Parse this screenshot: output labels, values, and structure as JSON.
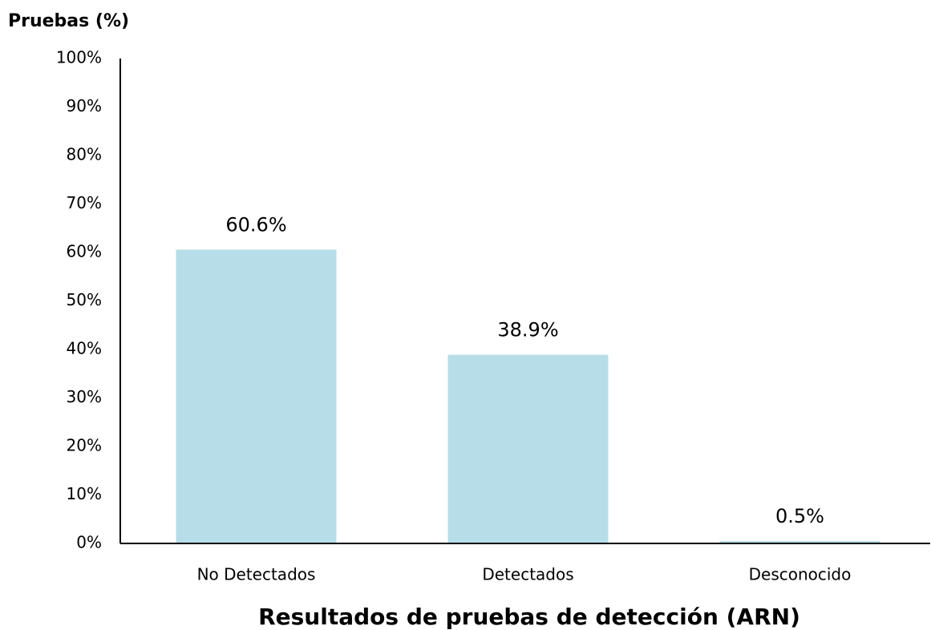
{
  "chart_data": {
    "type": "bar",
    "y_label": "Pruebas (%)",
    "x_label": "Resultados de pruebas de detección (ARN)",
    "categories": [
      "No Detectados",
      "Detectados",
      "Desconocido"
    ],
    "values": [
      60.6,
      38.9,
      0.5
    ],
    "value_labels": [
      "60.6%",
      "38.9%",
      "0.5%"
    ],
    "color": "#b7dee8",
    "ylim": [
      0,
      100
    ],
    "yticks": [
      {
        "value": 0,
        "label": "0%"
      },
      {
        "value": 10,
        "label": "10%"
      },
      {
        "value": 20,
        "label": "20%"
      },
      {
        "value": 30,
        "label": "30%"
      },
      {
        "value": 40,
        "label": "40%"
      },
      {
        "value": 50,
        "label": "50%"
      },
      {
        "value": 60,
        "label": "60%"
      },
      {
        "value": 70,
        "label": "70%"
      },
      {
        "value": 80,
        "label": "80%"
      },
      {
        "value": 90,
        "label": "90%"
      },
      {
        "value": 100,
        "label": "100%"
      }
    ],
    "grid": false
  }
}
